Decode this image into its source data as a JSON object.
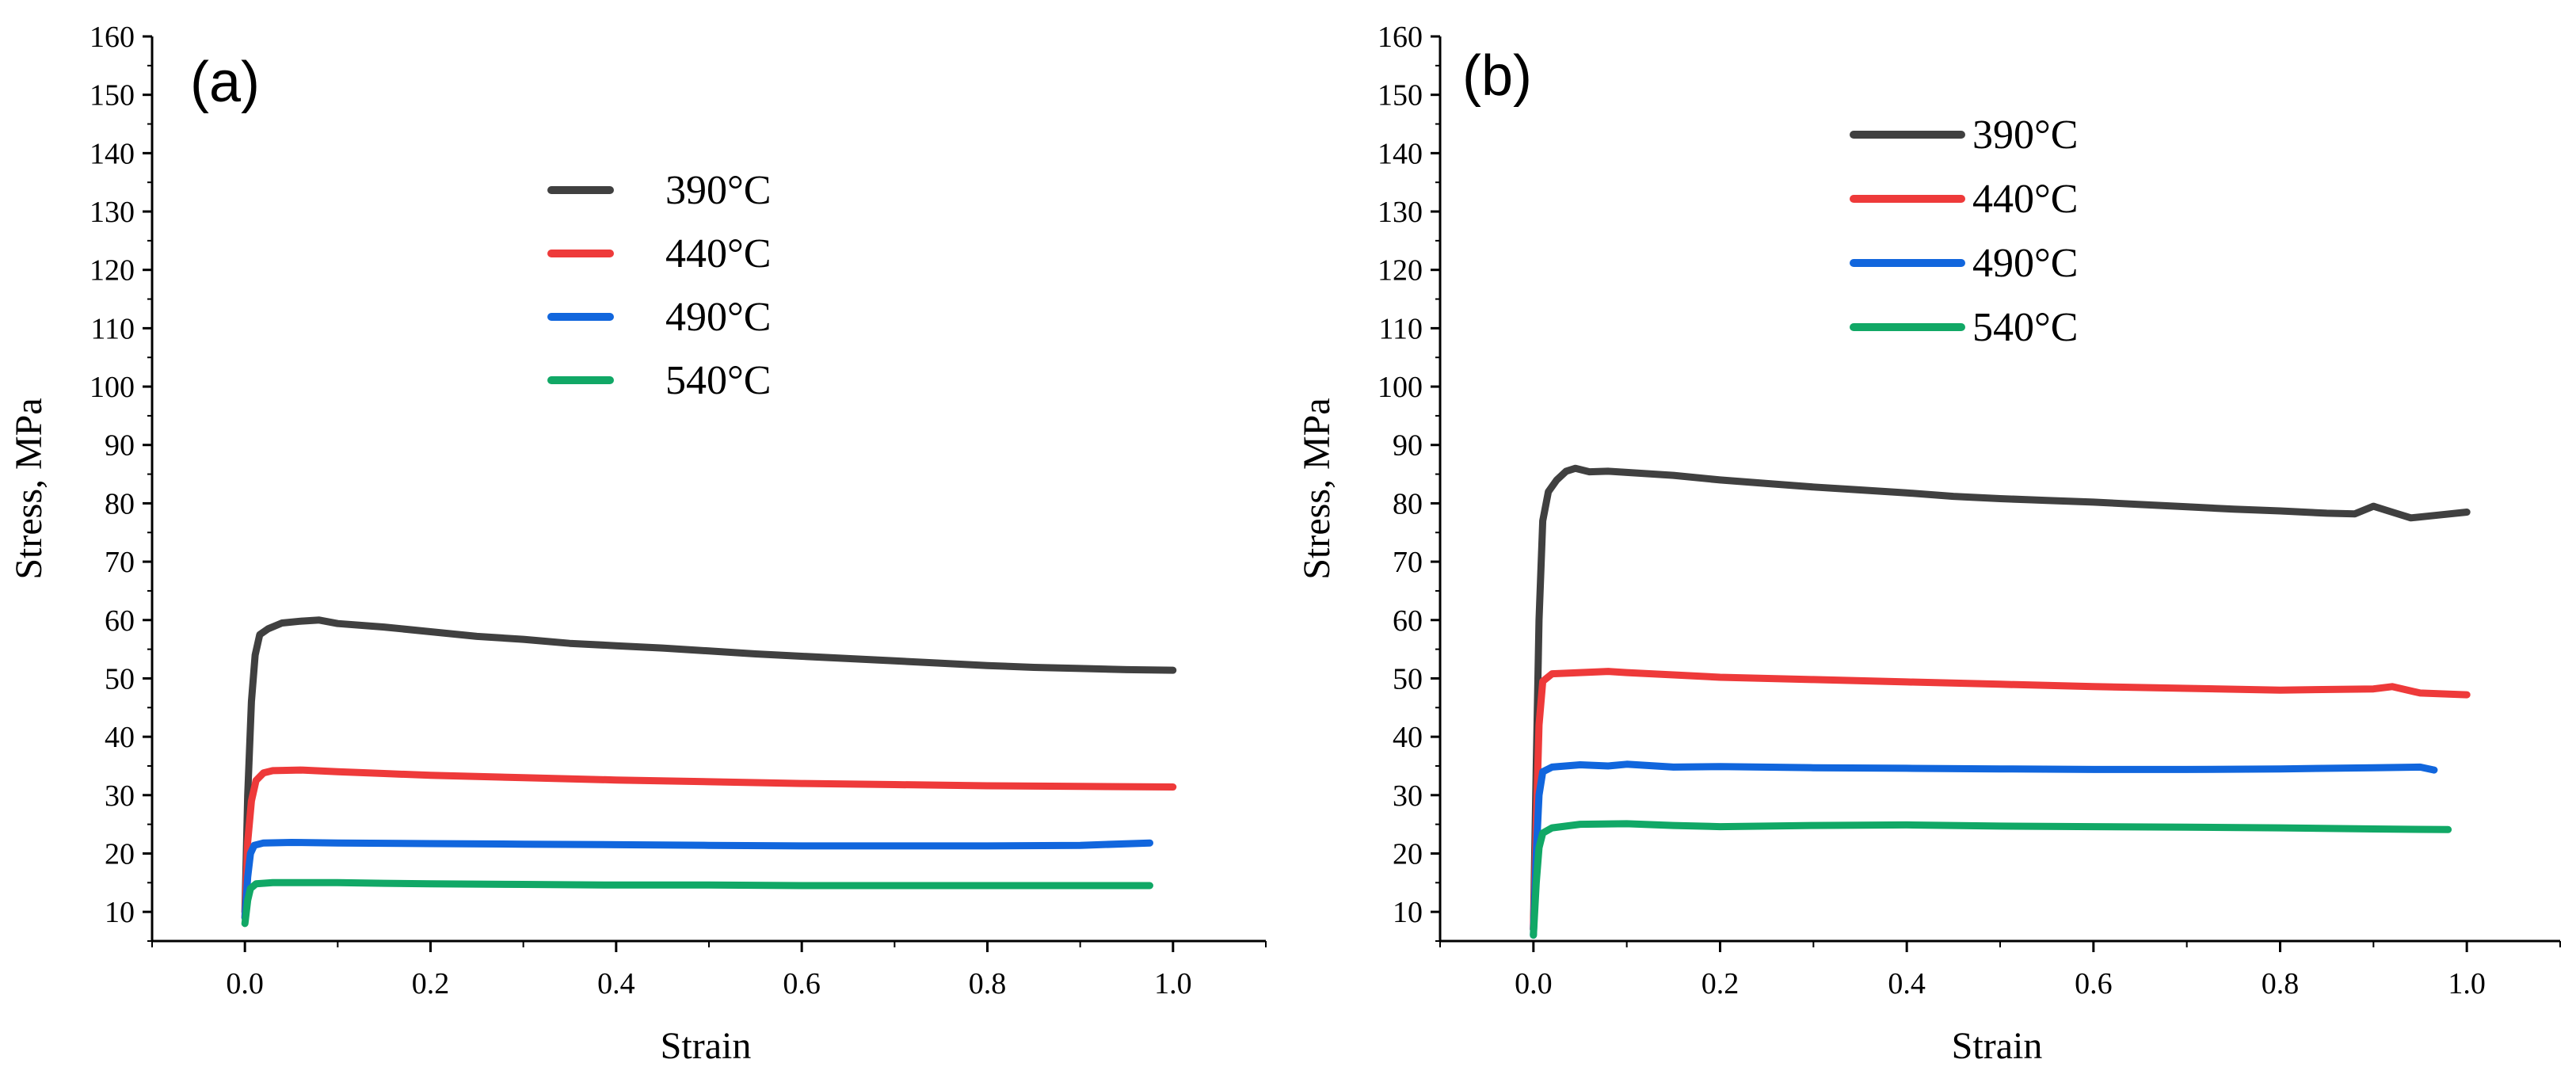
{
  "colors": {
    "390": "#404040",
    "440": "#ee3a3a",
    "490": "#1166dd",
    "540": "#11a866"
  },
  "chart_data": [
    {
      "type": "line",
      "panel": "(a)",
      "title": "",
      "xlabel": "Strain",
      "ylabel": "Stress, MPa",
      "xlim": [
        -0.1,
        1.1
      ],
      "ylim": [
        5,
        160
      ],
      "xticks": [
        "0.0",
        "0.2",
        "0.4",
        "0.6",
        "0.8",
        "1.0"
      ],
      "yticks": [
        "10",
        "20",
        "30",
        "40",
        "50",
        "60",
        "70",
        "80",
        "90",
        "100",
        "110",
        "120",
        "130",
        "140",
        "150",
        "160"
      ],
      "legend_position": "top-center",
      "series": [
        {
          "name": "390°C",
          "color_key": "390",
          "points": [
            [
              0,
              10
            ],
            [
              0.003,
              30
            ],
            [
              0.007,
              46
            ],
            [
              0.011,
              54
            ],
            [
              0.016,
              57.5
            ],
            [
              0.025,
              58.5
            ],
            [
              0.04,
              59.5
            ],
            [
              0.06,
              59.8
            ],
            [
              0.08,
              60
            ],
            [
              0.1,
              59.4
            ],
            [
              0.15,
              58.8
            ],
            [
              0.2,
              58
            ],
            [
              0.25,
              57.2
            ],
            [
              0.3,
              56.7
            ],
            [
              0.35,
              56
            ],
            [
              0.4,
              55.6
            ],
            [
              0.45,
              55.2
            ],
            [
              0.5,
              54.7
            ],
            [
              0.55,
              54.2
            ],
            [
              0.6,
              53.8
            ],
            [
              0.65,
              53.4
            ],
            [
              0.7,
              53
            ],
            [
              0.75,
              52.6
            ],
            [
              0.8,
              52.2
            ],
            [
              0.85,
              51.9
            ],
            [
              0.9,
              51.7
            ],
            [
              0.95,
              51.5
            ],
            [
              1.0,
              51.4
            ]
          ]
        },
        {
          "name": "440°C",
          "color_key": "440",
          "points": [
            [
              0,
              9
            ],
            [
              0.003,
              22
            ],
            [
              0.007,
              29
            ],
            [
              0.012,
              32.5
            ],
            [
              0.02,
              33.8
            ],
            [
              0.03,
              34.2
            ],
            [
              0.06,
              34.3
            ],
            [
              0.1,
              34
            ],
            [
              0.15,
              33.7
            ],
            [
              0.2,
              33.4
            ],
            [
              0.3,
              33
            ],
            [
              0.4,
              32.6
            ],
            [
              0.5,
              32.3
            ],
            [
              0.6,
              32
            ],
            [
              0.7,
              31.8
            ],
            [
              0.8,
              31.6
            ],
            [
              0.9,
              31.5
            ],
            [
              1.0,
              31.4
            ]
          ]
        },
        {
          "name": "490°C",
          "color_key": "490",
          "points": [
            [
              0,
              9
            ],
            [
              0.003,
              16
            ],
            [
              0.006,
              20
            ],
            [
              0.01,
              21.4
            ],
            [
              0.02,
              21.8
            ],
            [
              0.05,
              21.9
            ],
            [
              0.1,
              21.8
            ],
            [
              0.2,
              21.7
            ],
            [
              0.3,
              21.6
            ],
            [
              0.4,
              21.5
            ],
            [
              0.5,
              21.4
            ],
            [
              0.6,
              21.3
            ],
            [
              0.7,
              21.3
            ],
            [
              0.8,
              21.3
            ],
            [
              0.9,
              21.4
            ],
            [
              0.975,
              21.8
            ]
          ]
        },
        {
          "name": "540°C",
          "color_key": "540",
          "points": [
            [
              0,
              8
            ],
            [
              0.003,
              12
            ],
            [
              0.006,
              14
            ],
            [
              0.012,
              14.8
            ],
            [
              0.03,
              15
            ],
            [
              0.1,
              15
            ],
            [
              0.15,
              14.9
            ],
            [
              0.2,
              14.8
            ],
            [
              0.3,
              14.7
            ],
            [
              0.4,
              14.6
            ],
            [
              0.5,
              14.6
            ],
            [
              0.6,
              14.5
            ],
            [
              0.7,
              14.5
            ],
            [
              0.8,
              14.5
            ],
            [
              0.9,
              14.5
            ],
            [
              0.975,
              14.5
            ]
          ]
        }
      ]
    },
    {
      "type": "line",
      "panel": "(b)",
      "title": "",
      "xlabel": "Strain",
      "ylabel": "Stress, MPa",
      "xlim": [
        -0.1,
        1.1
      ],
      "ylim": [
        5,
        160
      ],
      "xticks": [
        "0.0",
        "0.2",
        "0.4",
        "0.6",
        "0.8",
        "1.0"
      ],
      "yticks": [
        "10",
        "20",
        "30",
        "40",
        "50",
        "60",
        "70",
        "80",
        "90",
        "100",
        "110",
        "120",
        "130",
        "140",
        "150",
        "160"
      ],
      "legend_position": "top-center",
      "series": [
        {
          "name": "390°C",
          "color_key": "390",
          "points": [
            [
              0,
              7
            ],
            [
              0.003,
              35
            ],
            [
              0.006,
              60
            ],
            [
              0.01,
              77
            ],
            [
              0.016,
              82
            ],
            [
              0.025,
              84
            ],
            [
              0.035,
              85.5
            ],
            [
              0.045,
              86
            ],
            [
              0.06,
              85.4
            ],
            [
              0.08,
              85.5
            ],
            [
              0.1,
              85.3
            ],
            [
              0.15,
              84.8
            ],
            [
              0.2,
              84
            ],
            [
              0.25,
              83.4
            ],
            [
              0.3,
              82.8
            ],
            [
              0.35,
              82.3
            ],
            [
              0.4,
              81.8
            ],
            [
              0.45,
              81.2
            ],
            [
              0.5,
              80.8
            ],
            [
              0.55,
              80.5
            ],
            [
              0.6,
              80.2
            ],
            [
              0.65,
              79.8
            ],
            [
              0.7,
              79.4
            ],
            [
              0.75,
              79
            ],
            [
              0.8,
              78.7
            ],
            [
              0.85,
              78.3
            ],
            [
              0.88,
              78.2
            ],
            [
              0.9,
              79.5
            ],
            [
              0.92,
              78.5
            ],
            [
              0.94,
              77.5
            ],
            [
              0.97,
              78
            ],
            [
              1.0,
              78.5
            ]
          ]
        },
        {
          "name": "440°C",
          "color_key": "440",
          "points": [
            [
              0,
              7
            ],
            [
              0.003,
              25
            ],
            [
              0.006,
              42
            ],
            [
              0.01,
              49.5
            ],
            [
              0.02,
              50.8
            ],
            [
              0.05,
              51
            ],
            [
              0.08,
              51.2
            ],
            [
              0.1,
              51
            ],
            [
              0.15,
              50.6
            ],
            [
              0.2,
              50.2
            ],
            [
              0.3,
              49.8
            ],
            [
              0.4,
              49.4
            ],
            [
              0.5,
              49
            ],
            [
              0.6,
              48.6
            ],
            [
              0.7,
              48.3
            ],
            [
              0.8,
              48
            ],
            [
              0.9,
              48.2
            ],
            [
              0.92,
              48.6
            ],
            [
              0.95,
              47.5
            ],
            [
              1.0,
              47.2
            ]
          ]
        },
        {
          "name": "490°C",
          "color_key": "490",
          "points": [
            [
              0,
              6
            ],
            [
              0.003,
              20
            ],
            [
              0.006,
              30
            ],
            [
              0.01,
              34
            ],
            [
              0.02,
              34.8
            ],
            [
              0.05,
              35.2
            ],
            [
              0.08,
              35
            ],
            [
              0.1,
              35.3
            ],
            [
              0.15,
              34.8
            ],
            [
              0.2,
              34.9
            ],
            [
              0.3,
              34.7
            ],
            [
              0.4,
              34.6
            ],
            [
              0.5,
              34.5
            ],
            [
              0.6,
              34.4
            ],
            [
              0.7,
              34.4
            ],
            [
              0.8,
              34.5
            ],
            [
              0.9,
              34.7
            ],
            [
              0.95,
              34.8
            ],
            [
              0.965,
              34.3
            ]
          ]
        },
        {
          "name": "540°C",
          "color_key": "540",
          "points": [
            [
              0,
              6
            ],
            [
              0.003,
              15
            ],
            [
              0.006,
              21
            ],
            [
              0.01,
              23.5
            ],
            [
              0.02,
              24.4
            ],
            [
              0.05,
              25
            ],
            [
              0.1,
              25.1
            ],
            [
              0.15,
              24.8
            ],
            [
              0.2,
              24.6
            ],
            [
              0.3,
              24.8
            ],
            [
              0.4,
              24.9
            ],
            [
              0.5,
              24.7
            ],
            [
              0.6,
              24.6
            ],
            [
              0.7,
              24.5
            ],
            [
              0.8,
              24.4
            ],
            [
              0.9,
              24.2
            ],
            [
              0.98,
              24.1
            ]
          ]
        }
      ]
    }
  ]
}
